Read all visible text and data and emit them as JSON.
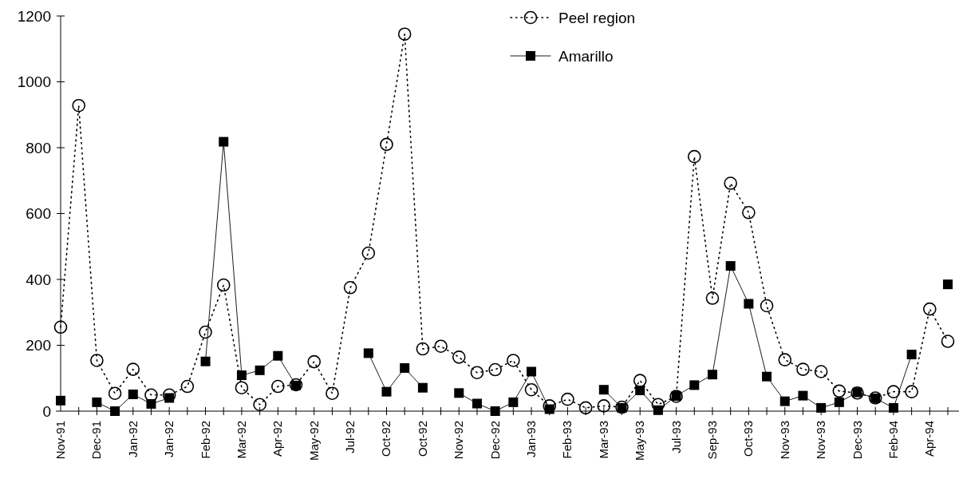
{
  "chart_data": {
    "type": "line",
    "categories": [
      "Nov-91",
      null,
      "Dec-91",
      null,
      "Jan-92",
      null,
      "Jan-92",
      null,
      "Feb-92",
      null,
      "Mar-92",
      null,
      "Apr-92",
      null,
      "May-92",
      null,
      "Jul-92",
      null,
      "Oct-92",
      null,
      "Oct-92",
      null,
      "Nov-92",
      null,
      "Dec-92",
      null,
      "Jan-93",
      null,
      "Feb-93",
      null,
      "Mar-93",
      null,
      "May-93",
      null,
      "Jul-93",
      null,
      "Sep-93",
      null,
      "Oct-93",
      null,
      "Nov-93",
      null,
      "Nov-93",
      null,
      "Dec-93",
      null,
      "Feb-94",
      null,
      "Apr-94",
      null
    ],
    "series": [
      {
        "name": "Peel region",
        "color": "#000000",
        "marker": "circle",
        "line_style": "dotted",
        "values": [
          255,
          928,
          154,
          54,
          127,
          49,
          49,
          75,
          240,
          383,
          71,
          20,
          75,
          80,
          150,
          54,
          375,
          480,
          810,
          1145,
          189,
          197,
          164,
          117,
          126,
          154,
          65,
          16,
          36,
          10,
          16,
          12,
          93,
          20,
          45,
          773,
          343,
          692,
          603,
          320,
          156,
          127,
          120,
          61,
          55,
          40,
          59,
          59,
          310,
          212
        ]
      },
      {
        "name": "Amarillo",
        "color": "#000000",
        "marker": "square",
        "line_style": "solid",
        "values": [
          32,
          null,
          27,
          0,
          51,
          22,
          40,
          null,
          151,
          818,
          109,
          124,
          168,
          78,
          null,
          null,
          null,
          176,
          59,
          131,
          71,
          null,
          55,
          23,
          0,
          27,
          120,
          6,
          null,
          null,
          65,
          10,
          63,
          3,
          46,
          79,
          111,
          441,
          326,
          105,
          30,
          47,
          10,
          27,
          57,
          39,
          10,
          172,
          null,
          385
        ]
      }
    ],
    "ylim": [
      0,
      1200
    ],
    "yticks": [
      0,
      200,
      400,
      600,
      800,
      1000,
      1200
    ],
    "grid": false,
    "legend": "top right"
  }
}
